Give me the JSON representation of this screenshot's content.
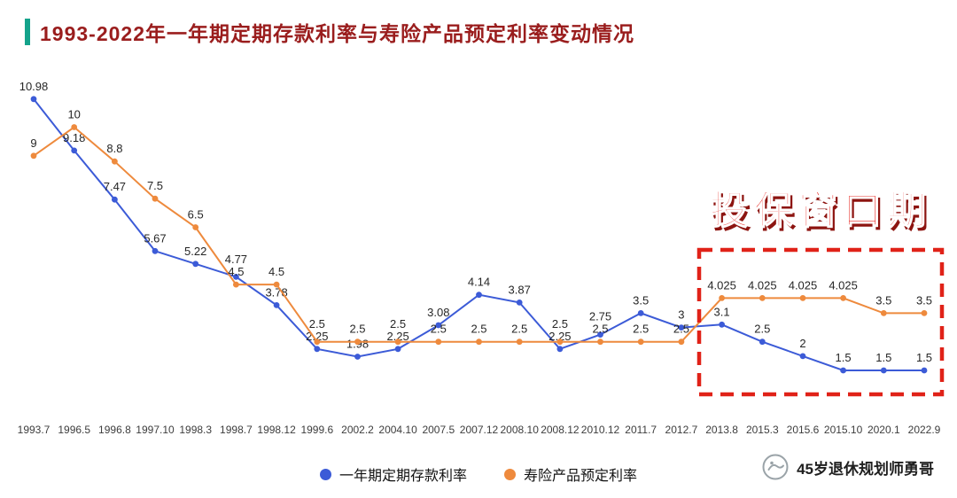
{
  "header": {
    "title": "1993-2022年一年期定期存款利率与寿险产品预定利率变动情况",
    "title_color": "#9a1d1d",
    "accent_color": "#14a38b"
  },
  "annotation": {
    "label": "投保窗口期",
    "color": "#e8231d"
  },
  "highlight_box": {
    "color": "#e02218"
  },
  "legend": [
    {
      "label": "一年期定期存款利率",
      "color": "#3c5bd7"
    },
    {
      "label": "寿险产品预定利率",
      "color": "#ee8a3d"
    }
  ],
  "watermark": {
    "text": "45岁退休规划师勇哥"
  },
  "chart_data": {
    "type": "line",
    "title": "1993-2022年一年期定期存款利率与寿险产品预定利率变动情况",
    "categories": [
      "1993.7",
      "1996.5",
      "1996.8",
      "1997.10",
      "1998.3",
      "1998.7",
      "1998.12",
      "1999.6",
      "2002.2",
      "2004.10",
      "2007.5",
      "2007.12",
      "2008.10",
      "2008.12",
      "2010.12",
      "2011.7",
      "2012.7",
      "2013.8",
      "2015.3",
      "2015.6",
      "2015.10",
      "2020.1",
      "2022.9"
    ],
    "series": [
      {
        "name": "一年期定期存款利率",
        "color": "#3c5bd7",
        "values": [
          10.98,
          9.18,
          7.47,
          5.67,
          5.22,
          4.77,
          3.78,
          2.25,
          1.98,
          2.25,
          3.08,
          4.14,
          3.87,
          2.25,
          2.75,
          3.5,
          3,
          3.1,
          2.5,
          2,
          1.5,
          1.5,
          1.5
        ]
      },
      {
        "name": "寿险产品预定利率",
        "color": "#ee8a3d",
        "values": [
          9,
          10,
          8.8,
          7.5,
          6.5,
          4.5,
          4.5,
          2.5,
          2.5,
          2.5,
          2.5,
          2.5,
          2.5,
          2.5,
          2.5,
          2.5,
          2.5,
          4.025,
          4.025,
          4.025,
          4.025,
          3.5,
          3.5
        ]
      }
    ],
    "ylim": [
      1,
      11.5
    ],
    "grid": false,
    "data_labels": true,
    "legend_position": "bottom",
    "annotation_region": {
      "text": "投保窗口期",
      "from_category": "2013.8",
      "to_category": "2022.9"
    }
  }
}
